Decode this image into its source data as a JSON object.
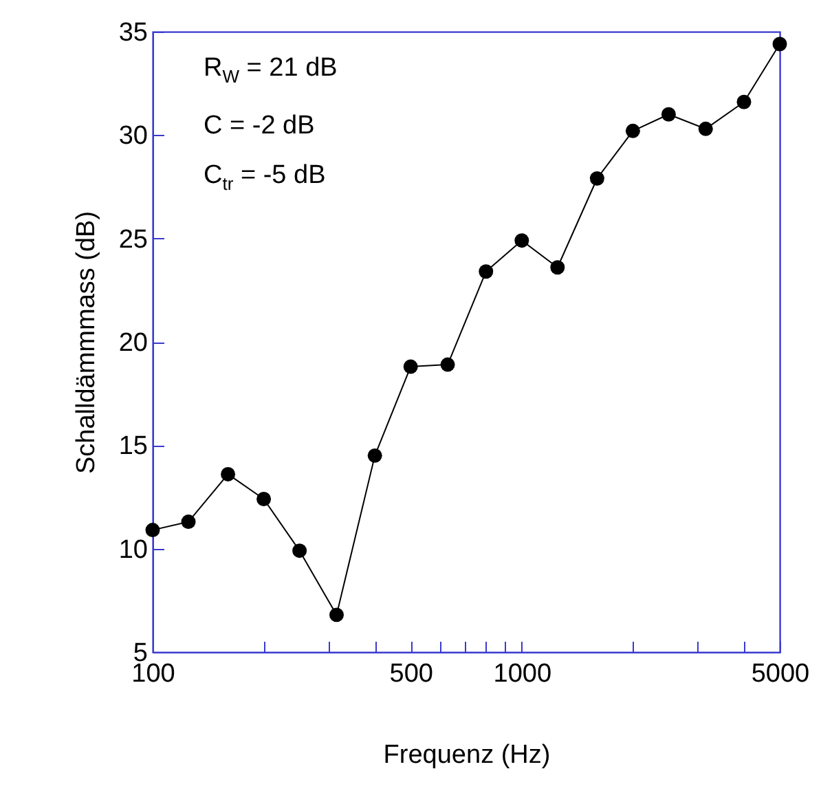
{
  "chart_data": {
    "type": "line",
    "xlabel": "Frequenz (Hz)",
    "ylabel": "Schalldämmmass (dB)",
    "log": "x",
    "marker": "circle",
    "line_style": "solid",
    "grid": false,
    "legend": false,
    "annotations": [
      "R$_{W}$ = 21 dB",
      "C = -2 dB",
      "C$_{tr}$ = -5 dB"
    ],
    "x": [
      100,
      125,
      160,
      200,
      250,
      315,
      400,
      500,
      630,
      800,
      1000,
      1250,
      1600,
      2000,
      2500,
      3150,
      4000,
      5000
    ],
    "series": [
      {
        "color": "#000000",
        "values": [
          10.9,
          11.3,
          13.6,
          12.4,
          9.9,
          6.8,
          14.5,
          18.8,
          18.9,
          23.4,
          24.9,
          23.6,
          27.9,
          30.2,
          31.0,
          30.3,
          31.6,
          34.4
        ]
      }
    ],
    "xlim": [
      100,
      5000
    ],
    "ylim": [
      5,
      35
    ],
    "xticks": [
      100,
      {
        "value": 200,
        "label": null
      },
      {
        "value": 300,
        "label": null
      },
      {
        "value": 400,
        "label": null
      },
      500,
      {
        "value": 600,
        "label": null
      },
      {
        "value": 700,
        "label": null
      },
      {
        "value": 800,
        "label": null
      },
      {
        "value": 900,
        "label": null
      },
      1000,
      {
        "value": 2000,
        "label": null
      },
      {
        "value": 3000,
        "label": null
      },
      {
        "value": 4000,
        "label": null
      },
      5000
    ],
    "yticks": [
      5,
      10,
      15,
      20,
      25,
      30,
      35
    ]
  }
}
